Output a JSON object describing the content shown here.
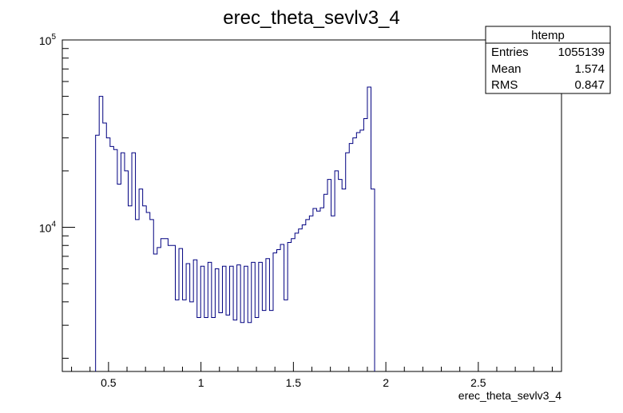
{
  "chart_data": {
    "type": "histogram",
    "title": "erec_theta_sevlv3_4",
    "xlabel": "erec_theta_sevlv3_4",
    "ylabel": "",
    "xlim": [
      0.25,
      2.95
    ],
    "ylim": [
      1700,
      100000
    ],
    "yscale": "log",
    "x_ticks": [
      "0.5",
      "1",
      "1.5",
      "2",
      "2.5"
    ],
    "x_tick_values": [
      0.5,
      1.0,
      1.5,
      2.0,
      2.5
    ],
    "y_tick_labels": [
      {
        "base": "10",
        "exp": "4",
        "value": 10000
      },
      {
        "base": "10",
        "exp": "5",
        "value": 100000
      }
    ],
    "line_color": "#000080",
    "grid": false,
    "legend": "none",
    "bin_edges_start": 0.43,
    "bin_width": 0.0196,
    "values": [
      31000,
      50000,
      36000,
      30000,
      27000,
      26000,
      17000,
      25000,
      20000,
      13000,
      25000,
      11000,
      16000,
      13000,
      12000,
      11000,
      7200,
      7800,
      8700,
      8700,
      8000,
      8000,
      4100,
      7700,
      4100,
      6400,
      4000,
      6700,
      3300,
      6200,
      3300,
      6500,
      3300,
      6000,
      3500,
      6200,
      3400,
      6200,
      3200,
      6300,
      3100,
      6200,
      3100,
      6500,
      3300,
      6500,
      3600,
      6800,
      3600,
      7300,
      7600,
      8100,
      4100,
      8300,
      8700,
      9300,
      9800,
      10300,
      11000,
      11500,
      12600,
      12200,
      12700,
      15000,
      18000,
      11500,
      20000,
      18000,
      16000,
      25000,
      28000,
      30000,
      32000,
      33000,
      38000,
      56000,
      16000
    ],
    "stats": {
      "name": "htemp",
      "rows": [
        {
          "label": "Entries",
          "value": "1055139"
        },
        {
          "label": "Mean",
          "value": "1.574"
        },
        {
          "label": "RMS",
          "value": "0.847"
        }
      ]
    }
  }
}
